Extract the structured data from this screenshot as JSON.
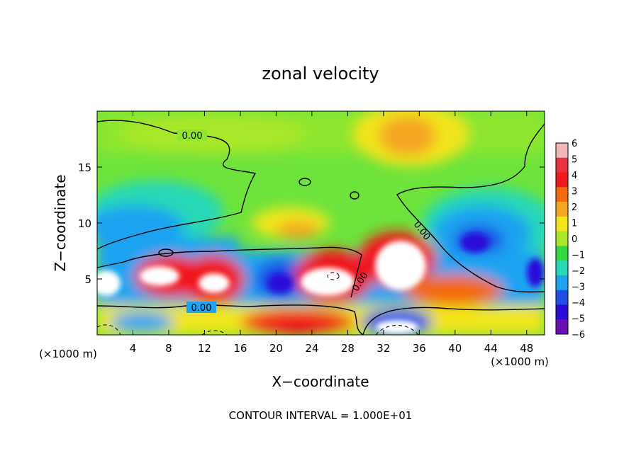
{
  "chart_data": {
    "type": "heatmap",
    "title": "zonal velocity",
    "xlabel": "X−coordinate",
    "ylabel": "Z−coordinate",
    "x_unit_left": "(×1000 m)",
    "x_unit_right": "(×1000 m)",
    "xlim": [
      0,
      50
    ],
    "ylim": [
      0,
      20
    ],
    "x_ticks": [
      4,
      8,
      12,
      16,
      20,
      24,
      28,
      32,
      36,
      40,
      44,
      48
    ],
    "x_tick_labels": [
      "4",
      "8",
      "12",
      "16",
      "20",
      "24",
      "28",
      "32",
      "36",
      "40",
      "44",
      "48"
    ],
    "y_ticks": [
      5,
      10,
      15
    ],
    "y_tick_labels": [
      "5",
      "10",
      "15"
    ],
    "colorbar": {
      "levels": [
        6,
        5,
        4,
        3,
        2,
        1,
        0,
        -1,
        -2,
        -3,
        -4,
        -5,
        -6
      ],
      "labels": [
        "6",
        "5",
        "4",
        "3",
        "2",
        "1",
        "0",
        "−1",
        "−2",
        "−3",
        "−4",
        "−5",
        "−6"
      ],
      "colors": [
        "#f4b7b9",
        "#e93240",
        "#f0191e",
        "#f36a10",
        "#f4a620",
        "#f1e61a",
        "#a9e72a",
        "#33d842",
        "#27d8b7",
        "#1ea3f1",
        "#1e50e6",
        "#2c0bd9",
        "#6a0fb6"
      ]
    },
    "contour_labels": [
      "0.00",
      "0.00",
      "0.00",
      "0.00"
    ],
    "contour_interval_text": "CONTOUR INTERVAL = 1.000E+01"
  }
}
